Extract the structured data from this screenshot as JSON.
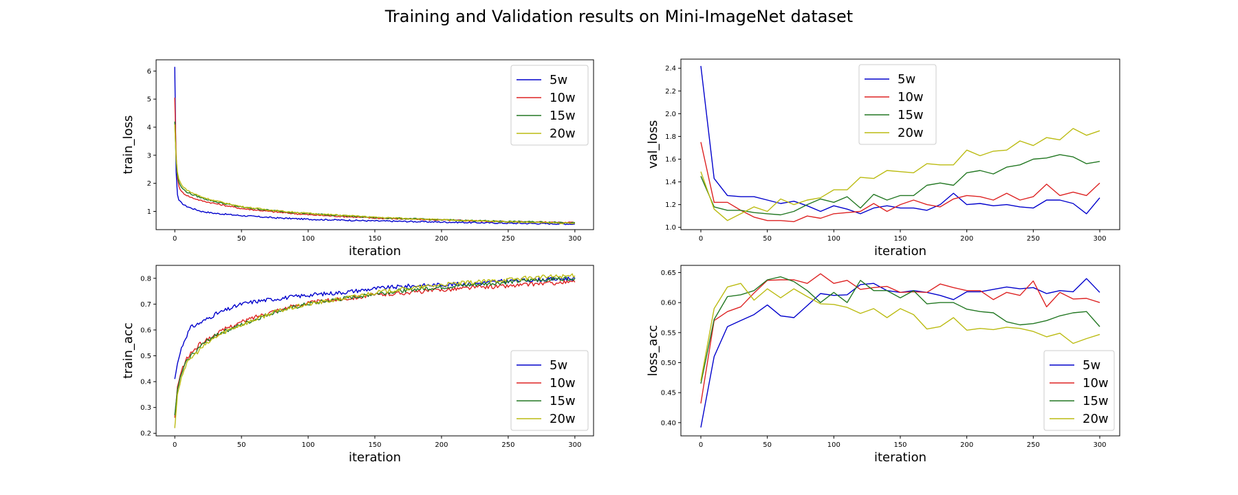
{
  "title": "Training and Validation results on Mini-ImageNet dataset",
  "chart_data": [
    {
      "type": "line",
      "xlabel": "iteration",
      "ylabel": "train_loss",
      "xlim": [
        -14,
        314
      ],
      "ylim": [
        0.35,
        6.4
      ],
      "xticks": [
        0,
        50,
        100,
        150,
        200,
        250,
        300
      ],
      "yticks": [
        1,
        2,
        3,
        4,
        5,
        6
      ],
      "legend": "top-right",
      "series": [
        {
          "name": "5w",
          "color": "#0000cc",
          "x": [
            0,
            1,
            2,
            3,
            5,
            8,
            12,
            20,
            30,
            50,
            75,
            100,
            150,
            200,
            250,
            300
          ],
          "y": [
            6.15,
            2.4,
            1.6,
            1.4,
            1.3,
            1.2,
            1.12,
            1.0,
            0.93,
            0.85,
            0.77,
            0.72,
            0.66,
            0.62,
            0.58,
            0.55
          ]
        },
        {
          "name": "10w",
          "color": "#dd2222",
          "x": [
            0,
            1,
            2,
            3,
            5,
            8,
            12,
            20,
            30,
            50,
            75,
            100,
            150,
            200,
            250,
            300
          ],
          "y": [
            5.05,
            3.0,
            2.2,
            1.9,
            1.7,
            1.6,
            1.5,
            1.38,
            1.28,
            1.1,
            0.98,
            0.88,
            0.76,
            0.69,
            0.64,
            0.6
          ]
        },
        {
          "name": "15w",
          "color": "#227722",
          "x": [
            0,
            1,
            2,
            3,
            5,
            8,
            12,
            20,
            30,
            50,
            75,
            100,
            150,
            200,
            250,
            300
          ],
          "y": [
            4.2,
            2.8,
            2.3,
            2.05,
            1.85,
            1.72,
            1.62,
            1.48,
            1.35,
            1.15,
            1.02,
            0.92,
            0.78,
            0.7,
            0.64,
            0.6
          ]
        },
        {
          "name": "20w",
          "color": "#bbbb11",
          "x": [
            0,
            1,
            2,
            3,
            5,
            8,
            12,
            20,
            30,
            50,
            75,
            100,
            150,
            200,
            250,
            300
          ],
          "y": [
            4.1,
            2.9,
            2.4,
            2.15,
            1.95,
            1.8,
            1.68,
            1.52,
            1.38,
            1.17,
            1.03,
            0.93,
            0.79,
            0.7,
            0.63,
            0.57
          ]
        }
      ]
    },
    {
      "type": "line",
      "xlabel": "iteration",
      "ylabel": "val_loss",
      "xlim": [
        -15,
        315
      ],
      "ylim": [
        0.98,
        2.48
      ],
      "xticks": [
        0,
        50,
        100,
        150,
        200,
        250,
        300
      ],
      "yticks": [
        1.0,
        1.2,
        1.4,
        1.6,
        1.8,
        2.0,
        2.2,
        2.4
      ],
      "legend": "upper-center",
      "series": [
        {
          "name": "5w",
          "color": "#0000cc",
          "x": [
            0,
            10,
            20,
            30,
            40,
            50,
            60,
            70,
            80,
            90,
            100,
            110,
            120,
            130,
            140,
            150,
            160,
            170,
            180,
            190,
            200,
            210,
            220,
            230,
            240,
            250,
            260,
            270,
            280,
            290,
            300
          ],
          "y": [
            2.42,
            1.43,
            1.28,
            1.27,
            1.27,
            1.24,
            1.21,
            1.23,
            1.19,
            1.14,
            1.19,
            1.16,
            1.12,
            1.17,
            1.19,
            1.17,
            1.17,
            1.15,
            1.2,
            1.3,
            1.2,
            1.21,
            1.19,
            1.2,
            1.18,
            1.17,
            1.24,
            1.24,
            1.21,
            1.12,
            1.26
          ]
        },
        {
          "name": "10w",
          "color": "#dd2222",
          "x": [
            0,
            10,
            20,
            30,
            40,
            50,
            60,
            70,
            80,
            90,
            100,
            110,
            120,
            130,
            140,
            150,
            160,
            170,
            180,
            190,
            200,
            210,
            220,
            230,
            240,
            250,
            260,
            270,
            280,
            290,
            300
          ],
          "y": [
            1.75,
            1.22,
            1.22,
            1.15,
            1.09,
            1.06,
            1.06,
            1.05,
            1.1,
            1.08,
            1.12,
            1.13,
            1.14,
            1.21,
            1.14,
            1.2,
            1.24,
            1.2,
            1.18,
            1.25,
            1.28,
            1.27,
            1.24,
            1.3,
            1.24,
            1.27,
            1.38,
            1.28,
            1.31,
            1.28,
            1.39
          ]
        },
        {
          "name": "15w",
          "color": "#227722",
          "x": [
            0,
            10,
            20,
            30,
            40,
            50,
            60,
            70,
            80,
            90,
            100,
            110,
            120,
            130,
            140,
            150,
            160,
            170,
            180,
            190,
            200,
            210,
            220,
            230,
            240,
            250,
            260,
            270,
            280,
            290,
            300
          ],
          "y": [
            1.45,
            1.18,
            1.15,
            1.15,
            1.13,
            1.12,
            1.11,
            1.14,
            1.2,
            1.25,
            1.22,
            1.27,
            1.17,
            1.29,
            1.24,
            1.28,
            1.28,
            1.37,
            1.39,
            1.37,
            1.48,
            1.5,
            1.47,
            1.53,
            1.55,
            1.6,
            1.61,
            1.64,
            1.62,
            1.56,
            1.58
          ]
        },
        {
          "name": "20w",
          "color": "#bbbb11",
          "x": [
            0,
            10,
            20,
            30,
            40,
            50,
            60,
            70,
            80,
            90,
            100,
            110,
            120,
            130,
            140,
            150,
            160,
            170,
            180,
            190,
            200,
            210,
            220,
            230,
            240,
            250,
            260,
            270,
            280,
            290,
            300
          ],
          "y": [
            1.49,
            1.16,
            1.06,
            1.12,
            1.18,
            1.14,
            1.25,
            1.2,
            1.24,
            1.26,
            1.33,
            1.33,
            1.44,
            1.43,
            1.5,
            1.49,
            1.48,
            1.56,
            1.55,
            1.55,
            1.68,
            1.63,
            1.67,
            1.68,
            1.76,
            1.72,
            1.79,
            1.77,
            1.87,
            1.81,
            1.85
          ]
        }
      ]
    },
    {
      "type": "line",
      "xlabel": "iteration",
      "ylabel": "train_acc",
      "xlim": [
        -14,
        314
      ],
      "ylim": [
        0.19,
        0.85
      ],
      "xticks": [
        0,
        50,
        100,
        150,
        200,
        250,
        300
      ],
      "yticks": [
        0.2,
        0.3,
        0.4,
        0.5,
        0.6,
        0.7,
        0.8
      ],
      "legend": "bottom-right",
      "series": [
        {
          "name": "5w",
          "color": "#0000cc",
          "x": [
            0,
            2,
            5,
            8,
            12,
            20,
            30,
            40,
            50,
            60,
            75,
            100,
            125,
            150,
            175,
            200,
            225,
            250,
            275,
            300
          ],
          "y": [
            0.41,
            0.47,
            0.53,
            0.57,
            0.61,
            0.63,
            0.66,
            0.68,
            0.7,
            0.71,
            0.72,
            0.735,
            0.745,
            0.76,
            0.77,
            0.775,
            0.78,
            0.79,
            0.795,
            0.8
          ]
        },
        {
          "name": "10w",
          "color": "#dd2222",
          "x": [
            0,
            2,
            5,
            8,
            12,
            20,
            30,
            40,
            50,
            60,
            75,
            100,
            125,
            150,
            175,
            200,
            225,
            250,
            275,
            300
          ],
          "y": [
            0.26,
            0.38,
            0.44,
            0.48,
            0.51,
            0.55,
            0.58,
            0.61,
            0.63,
            0.65,
            0.675,
            0.705,
            0.72,
            0.735,
            0.745,
            0.755,
            0.765,
            0.77,
            0.78,
            0.785
          ]
        },
        {
          "name": "15w",
          "color": "#227722",
          "x": [
            0,
            2,
            5,
            8,
            12,
            20,
            30,
            40,
            50,
            60,
            75,
            100,
            125,
            150,
            175,
            200,
            225,
            250,
            275,
            300
          ],
          "y": [
            0.27,
            0.37,
            0.43,
            0.47,
            0.5,
            0.54,
            0.58,
            0.6,
            0.62,
            0.64,
            0.67,
            0.7,
            0.72,
            0.74,
            0.755,
            0.765,
            0.775,
            0.785,
            0.795,
            0.8
          ]
        },
        {
          "name": "20w",
          "color": "#bbbb11",
          "x": [
            0,
            2,
            5,
            8,
            12,
            20,
            30,
            40,
            50,
            60,
            75,
            100,
            125,
            150,
            175,
            200,
            225,
            250,
            275,
            300
          ],
          "y": [
            0.22,
            0.35,
            0.42,
            0.46,
            0.49,
            0.53,
            0.57,
            0.6,
            0.62,
            0.64,
            0.67,
            0.7,
            0.72,
            0.745,
            0.76,
            0.775,
            0.785,
            0.795,
            0.805,
            0.81
          ]
        }
      ]
    },
    {
      "type": "line",
      "xlabel": "iteration",
      "ylabel": "loss_acc",
      "xlim": [
        -15,
        315
      ],
      "ylim": [
        0.378,
        0.662
      ],
      "xticks": [
        0,
        50,
        100,
        150,
        200,
        250,
        300
      ],
      "yticks": [
        0.4,
        0.45,
        0.5,
        0.55,
        0.6,
        0.65
      ],
      "legend": "bottom-right",
      "series": [
        {
          "name": "5w",
          "color": "#0000cc",
          "x": [
            0,
            10,
            20,
            30,
            40,
            50,
            60,
            70,
            80,
            90,
            100,
            110,
            120,
            130,
            140,
            150,
            160,
            170,
            180,
            190,
            200,
            210,
            220,
            230,
            240,
            250,
            260,
            270,
            280,
            290,
            300
          ],
          "y": [
            0.392,
            0.51,
            0.56,
            0.57,
            0.58,
            0.596,
            0.578,
            0.575,
            0.595,
            0.615,
            0.612,
            0.613,
            0.63,
            0.632,
            0.62,
            0.617,
            0.62,
            0.617,
            0.612,
            0.605,
            0.618,
            0.618,
            0.622,
            0.626,
            0.623,
            0.625,
            0.615,
            0.62,
            0.618,
            0.64,
            0.617
          ]
        },
        {
          "name": "10w",
          "color": "#dd2222",
          "x": [
            0,
            10,
            20,
            30,
            40,
            50,
            60,
            70,
            80,
            90,
            100,
            110,
            120,
            130,
            140,
            150,
            160,
            170,
            180,
            190,
            200,
            210,
            220,
            230,
            240,
            250,
            260,
            270,
            280,
            290,
            300
          ],
          "y": [
            0.432,
            0.57,
            0.585,
            0.593,
            0.616,
            0.637,
            0.638,
            0.638,
            0.632,
            0.648,
            0.632,
            0.637,
            0.622,
            0.625,
            0.627,
            0.617,
            0.618,
            0.617,
            0.631,
            0.625,
            0.62,
            0.62,
            0.605,
            0.617,
            0.612,
            0.636,
            0.593,
            0.617,
            0.606,
            0.607,
            0.6
          ]
        },
        {
          "name": "15w",
          "color": "#227722",
          "x": [
            0,
            10,
            20,
            30,
            40,
            50,
            60,
            70,
            80,
            90,
            100,
            110,
            120,
            130,
            140,
            150,
            160,
            170,
            180,
            190,
            200,
            210,
            220,
            230,
            240,
            250,
            260,
            270,
            280,
            290,
            300
          ],
          "y": [
            0.465,
            0.572,
            0.61,
            0.613,
            0.62,
            0.638,
            0.643,
            0.635,
            0.62,
            0.6,
            0.617,
            0.6,
            0.637,
            0.62,
            0.62,
            0.608,
            0.62,
            0.598,
            0.6,
            0.6,
            0.589,
            0.585,
            0.583,
            0.568,
            0.563,
            0.565,
            0.57,
            0.578,
            0.583,
            0.585,
            0.56
          ]
        },
        {
          "name": "20w",
          "color": "#bbbb11",
          "x": [
            0,
            10,
            20,
            30,
            40,
            50,
            60,
            70,
            80,
            90,
            100,
            110,
            120,
            130,
            140,
            150,
            160,
            170,
            180,
            190,
            200,
            210,
            220,
            230,
            240,
            250,
            260,
            270,
            280,
            290,
            300
          ],
          "y": [
            0.47,
            0.59,
            0.626,
            0.632,
            0.604,
            0.623,
            0.608,
            0.623,
            0.61,
            0.598,
            0.597,
            0.592,
            0.582,
            0.59,
            0.575,
            0.59,
            0.58,
            0.556,
            0.56,
            0.575,
            0.554,
            0.557,
            0.555,
            0.559,
            0.557,
            0.552,
            0.543,
            0.549,
            0.532,
            0.54,
            0.547
          ]
        }
      ]
    }
  ]
}
